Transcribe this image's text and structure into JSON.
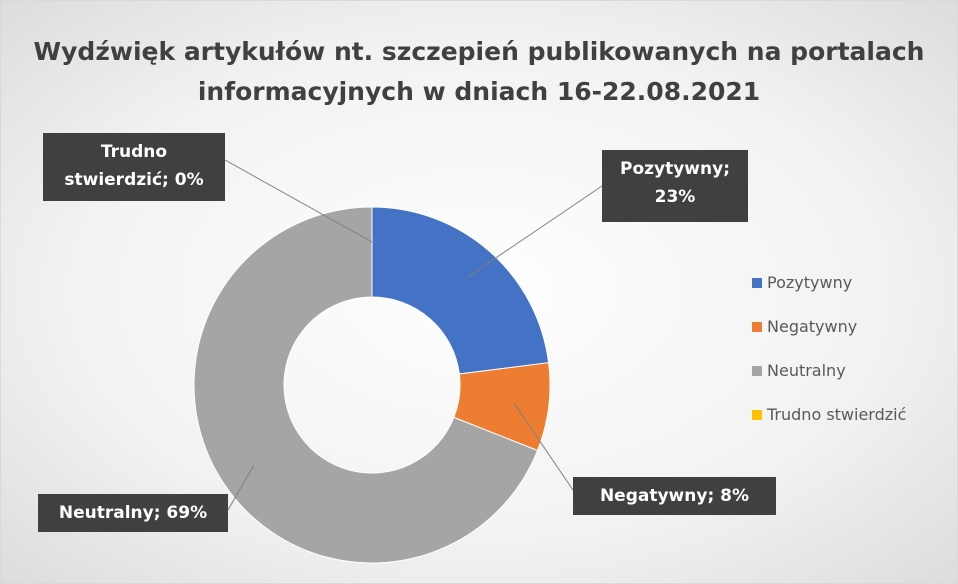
{
  "chart_data": {
    "type": "donut",
    "title": "Wydźwięk artykułów nt. szczepień publikowanych na portalach informacyjnych w dniach 16-22.08.2021",
    "categories": [
      "Pozytywny",
      "Negatywny",
      "Neutralny",
      "Trudno stwierdzić"
    ],
    "values": [
      23,
      8,
      69,
      0
    ],
    "value_labels": [
      "Pozytywny; 23%",
      "Negatywny; 8%",
      "Neutralny; 69%",
      "Trudno stwierdzić; 0%"
    ],
    "colors": [
      "#4472c4",
      "#ed7d31",
      "#a5a5a5",
      "#ffc000"
    ],
    "legend": "right"
  }
}
